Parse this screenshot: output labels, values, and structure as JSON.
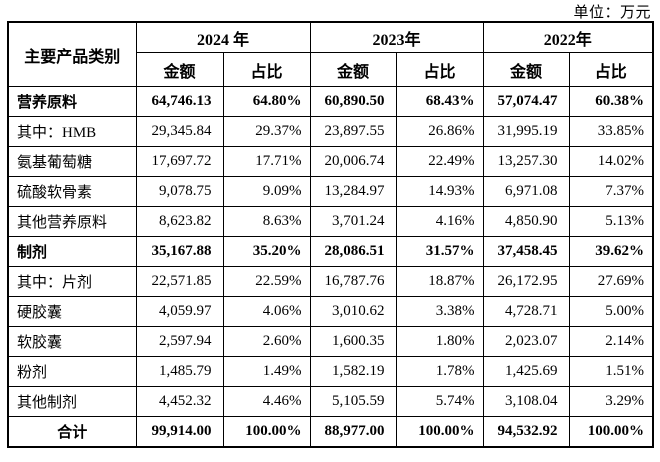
{
  "unit_label": "单位：万元",
  "colors": {
    "background": "#ffffff",
    "text": "#000000",
    "border": "#000000"
  },
  "table": {
    "category_header": "主要产品类别",
    "year_groups": [
      {
        "year": "2024 年",
        "sub": [
          "金额",
          "占比"
        ]
      },
      {
        "year": "2023年",
        "sub": [
          "金额",
          "占比"
        ]
      },
      {
        "year": "2022年",
        "sub": [
          "金额",
          "占比"
        ]
      }
    ],
    "rows": [
      {
        "label": "营养原料",
        "bold": true,
        "total": false,
        "values": [
          "64,746.13",
          "64.80%",
          "60,890.50",
          "68.43%",
          "57,074.47",
          "60.38%"
        ]
      },
      {
        "label": "其中：HMB",
        "bold": false,
        "total": false,
        "values": [
          "29,345.84",
          "29.37%",
          "23,897.55",
          "26.86%",
          "31,995.19",
          "33.85%"
        ]
      },
      {
        "label": "氨基葡萄糖",
        "bold": false,
        "total": false,
        "values": [
          "17,697.72",
          "17.71%",
          "20,006.74",
          "22.49%",
          "13,257.30",
          "14.02%"
        ]
      },
      {
        "label": "硫酸软骨素",
        "bold": false,
        "total": false,
        "values": [
          "9,078.75",
          "9.09%",
          "13,284.97",
          "14.93%",
          "6,971.08",
          "7.37%"
        ]
      },
      {
        "label": "其他营养原料",
        "bold": false,
        "total": false,
        "values": [
          "8,623.82",
          "8.63%",
          "3,701.24",
          "4.16%",
          "4,850.90",
          "5.13%"
        ]
      },
      {
        "label": "制剂",
        "bold": true,
        "total": false,
        "values": [
          "35,167.88",
          "35.20%",
          "28,086.51",
          "31.57%",
          "37,458.45",
          "39.62%"
        ]
      },
      {
        "label": "其中：片剂",
        "bold": false,
        "total": false,
        "values": [
          "22,571.85",
          "22.59%",
          "16,787.76",
          "18.87%",
          "26,172.95",
          "27.69%"
        ]
      },
      {
        "label": "硬胶囊",
        "bold": false,
        "total": false,
        "values": [
          "4,059.97",
          "4.06%",
          "3,010.62",
          "3.38%",
          "4,728.71",
          "5.00%"
        ]
      },
      {
        "label": "软胶囊",
        "bold": false,
        "total": false,
        "values": [
          "2,597.94",
          "2.60%",
          "1,600.35",
          "1.80%",
          "2,023.07",
          "2.14%"
        ]
      },
      {
        "label": "粉剂",
        "bold": false,
        "total": false,
        "values": [
          "1,485.79",
          "1.49%",
          "1,582.19",
          "1.78%",
          "1,425.69",
          "1.51%"
        ]
      },
      {
        "label": "其他制剂",
        "bold": false,
        "total": false,
        "values": [
          "4,452.32",
          "4.46%",
          "5,105.59",
          "5.74%",
          "3,108.04",
          "3.29%"
        ]
      },
      {
        "label": "合计",
        "bold": true,
        "total": true,
        "values": [
          "99,914.00",
          "100.00%",
          "88,977.00",
          "100.00%",
          "94,532.92",
          "100.00%"
        ]
      }
    ]
  }
}
